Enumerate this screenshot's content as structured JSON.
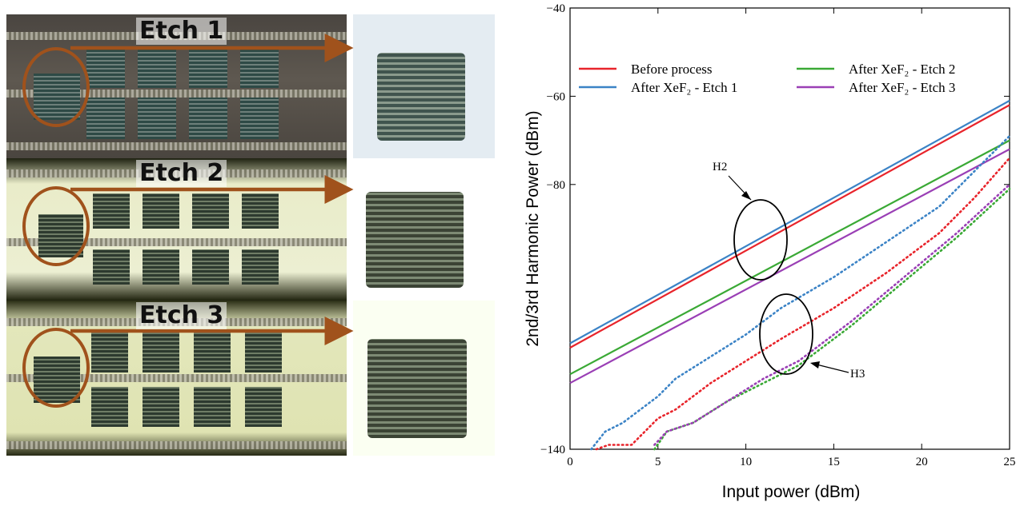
{
  "photos": {
    "labels": [
      "Etch 1",
      "Etch 2",
      "Etch 3"
    ],
    "marker_color": "#a0521c"
  },
  "chart_data": {
    "type": "line",
    "xlabel": "Input power (dBm)",
    "ylabel": "2nd/3rd Harmonic Power (dBm)",
    "xlim": [
      0,
      25
    ],
    "ylim": [
      -140,
      -40
    ],
    "xticks": [
      0,
      5,
      10,
      15,
      20,
      25
    ],
    "yticks": [
      -140,
      -80,
      -60,
      -40
    ],
    "grid": false,
    "legend_position": "top",
    "legend": [
      "Before process",
      "After XeF₂ - Etch 1",
      "After XeF₂ - Etch 2",
      "After XeF₂ - Etch 3"
    ],
    "annotations": [
      "H2",
      "H3"
    ],
    "series": [
      {
        "name": "Before process",
        "harmonic": "H2",
        "style": "solid",
        "color": "#e8242b",
        "x": [
          0,
          25
        ],
        "y": [
          -117,
          -62
        ]
      },
      {
        "name": "After XeF₂ - Etch 1",
        "harmonic": "H2",
        "style": "solid",
        "color": "#3b83c6",
        "x": [
          0,
          25
        ],
        "y": [
          -116,
          -61
        ]
      },
      {
        "name": "After XeF₂ - Etch 2",
        "harmonic": "H2",
        "style": "solid",
        "color": "#3aa935",
        "x": [
          0,
          25
        ],
        "y": [
          -123,
          -70
        ]
      },
      {
        "name": "After XeF₂ - Etch 3",
        "harmonic": "H2",
        "style": "solid",
        "color": "#9a3fb5",
        "x": [
          0,
          25
        ],
        "y": [
          -125,
          -72
        ]
      },
      {
        "name": "Before process",
        "harmonic": "H3",
        "style": "dotted",
        "color": "#e8242b",
        "x": [
          1.5,
          2.2,
          3.5,
          5,
          6,
          8,
          10,
          12,
          15,
          18,
          21,
          23,
          25
        ],
        "y": [
          -140,
          -139,
          -139,
          -133,
          -131,
          -125,
          -120,
          -115,
          -108,
          -100,
          -91,
          -83,
          -74
        ]
      },
      {
        "name": "After XeF₂ - Etch 1",
        "harmonic": "H3",
        "style": "dotted",
        "color": "#3b83c6",
        "x": [
          1.2,
          2,
          3,
          5,
          6,
          8,
          10,
          12,
          15,
          18,
          21,
          23,
          25
        ],
        "y": [
          -140,
          -136,
          -134,
          -128,
          -124,
          -119,
          -114,
          -108,
          -101,
          -93,
          -85,
          -77,
          -69
        ]
      },
      {
        "name": "After XeF₂ - Etch 2",
        "harmonic": "H3",
        "style": "dotted",
        "color": "#3aa935",
        "x": [
          4.8,
          5.5,
          7,
          9,
          11,
          13,
          16,
          19,
          22,
          25
        ],
        "y": [
          -140,
          -136,
          -134,
          -129,
          -125,
          -121,
          -112,
          -102,
          -92,
          -81
        ]
      },
      {
        "name": "After XeF₂ - Etch 3",
        "harmonic": "H3",
        "style": "dotted",
        "color": "#9a3fb5",
        "x": [
          4.8,
          5.5,
          7,
          9,
          11,
          13,
          16,
          19,
          22,
          25
        ],
        "y": [
          -139,
          -136,
          -134,
          -129,
          -124,
          -120,
          -111,
          -101,
          -91,
          -80
        ]
      }
    ]
  }
}
